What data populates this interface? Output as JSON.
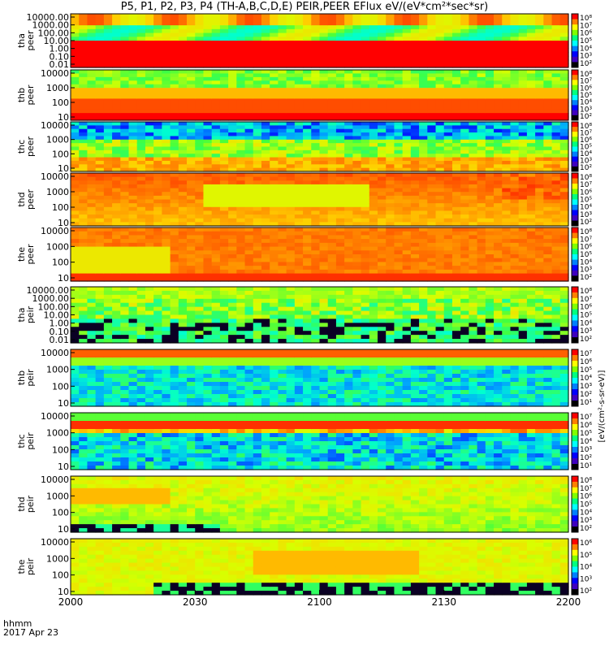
{
  "title": "P5, P1, P2, P3, P4 (TH-A,B,C,D,E) PEIR,PEER EFlux eV/(eV*cm²*sec*sr)",
  "x_axis": {
    "label_line1": "hhmm",
    "label_line2": "2017 Apr 23",
    "ticks": [
      "2000",
      "2030",
      "2100",
      "2130",
      "2200"
    ]
  },
  "colorbar_label": "[eV/(cm²-s-sr-eV)]",
  "chart_data": [
    {
      "type": "heatmap",
      "probe": "tha",
      "species": "peer",
      "ylabel_top": "tha",
      "ylabel_bottom": "peer",
      "yticks": [
        "10000.00",
        "1000.00",
        "100.00",
        "10.00",
        "1.00",
        "0.10",
        "0.01"
      ],
      "ylog": true,
      "colorbar_ticks": [
        "10⁸",
        "10⁷",
        "10⁶",
        "10⁵",
        "10⁴",
        "10³",
        "10²"
      ],
      "theme": "peer_a",
      "grid": false
    },
    {
      "type": "heatmap",
      "probe": "thb",
      "species": "peer",
      "ylabel_top": "thb",
      "ylabel_bottom": "peer",
      "yticks": [
        "10000",
        "1000",
        "100",
        "10"
      ],
      "ylog": true,
      "colorbar_ticks": [
        "10⁸",
        "10⁷",
        "10⁶",
        "10⁵",
        "10⁴",
        "10³",
        "10²"
      ],
      "theme": "peer_b",
      "grid": false
    },
    {
      "type": "heatmap",
      "probe": "thc",
      "species": "peer",
      "ylabel_top": "thc",
      "ylabel_bottom": "peer",
      "yticks": [
        "10000",
        "1000",
        "100",
        "10"
      ],
      "ylog": true,
      "colorbar_ticks": [
        "10⁸",
        "10⁷",
        "10⁶",
        "10⁵",
        "10⁴",
        "10³",
        "10²"
      ],
      "theme": "peer_c",
      "grid": false
    },
    {
      "type": "heatmap",
      "probe": "thd",
      "species": "peer",
      "ylabel_top": "thd",
      "ylabel_bottom": "peer",
      "yticks": [
        "10000",
        "1000",
        "100",
        "10"
      ],
      "ylog": true,
      "colorbar_ticks": [
        "10⁸",
        "10⁷",
        "10⁶",
        "10⁵",
        "10⁴",
        "10³",
        "10²"
      ],
      "theme": "peer_d",
      "grid": false
    },
    {
      "type": "heatmap",
      "probe": "the",
      "species": "peer",
      "ylabel_top": "the",
      "ylabel_bottom": "peer",
      "yticks": [
        "10000",
        "1000",
        "100",
        "10"
      ],
      "ylog": true,
      "colorbar_ticks": [
        "10⁸",
        "10⁷",
        "10⁶",
        "10⁵",
        "10⁴",
        "10³",
        "10²"
      ],
      "theme": "peer_e",
      "grid": false
    },
    {
      "type": "heatmap",
      "probe": "tha",
      "species": "peir",
      "ylabel_top": "tha",
      "ylabel_bottom": "peir",
      "yticks": [
        "10000.00",
        "1000.00",
        "100.00",
        "10.00",
        "1.00",
        "0.10",
        "0.01"
      ],
      "ylog": true,
      "colorbar_ticks": [
        "10⁸",
        "10⁷",
        "10⁶",
        "10⁵",
        "10⁴",
        "10³",
        "10²"
      ],
      "theme": "peir_a",
      "grid": false
    },
    {
      "type": "heatmap",
      "probe": "thb",
      "species": "peir",
      "ylabel_top": "thb",
      "ylabel_bottom": "peir",
      "yticks": [
        "10000",
        "1000",
        "100",
        "10"
      ],
      "ylog": true,
      "colorbar_ticks": [
        "10⁷",
        "10⁶",
        "10⁵",
        "10⁴",
        "10³",
        "10²",
        "10¹"
      ],
      "theme": "peir_b",
      "grid": false
    },
    {
      "type": "heatmap",
      "probe": "thc",
      "species": "peir",
      "ylabel_top": "thc",
      "ylabel_bottom": "peir",
      "yticks": [
        "10000",
        "1000",
        "100",
        "10"
      ],
      "ylog": true,
      "colorbar_ticks": [
        "10⁷",
        "10⁶",
        "10⁵",
        "10⁴",
        "10³",
        "10²",
        "10¹"
      ],
      "theme": "peir_c",
      "grid": false
    },
    {
      "type": "heatmap",
      "probe": "thd",
      "species": "peir",
      "ylabel_top": "thd",
      "ylabel_bottom": "peir",
      "yticks": [
        "10000",
        "1000",
        "100",
        "10"
      ],
      "ylog": true,
      "colorbar_ticks": [
        "10⁸",
        "10⁷",
        "10⁶",
        "10⁵",
        "10⁴",
        "10³",
        "10²"
      ],
      "theme": "peir_d",
      "grid": false
    },
    {
      "type": "heatmap",
      "probe": "the",
      "species": "peir",
      "ylabel_top": "the",
      "ylabel_bottom": "peir",
      "yticks": [
        "10000",
        "1000",
        "100",
        "10"
      ],
      "ylog": true,
      "colorbar_ticks": [
        "10⁶",
        "10⁵",
        "10⁴",
        "10³",
        "10²"
      ],
      "theme": "peir_e",
      "grid": false
    }
  ]
}
